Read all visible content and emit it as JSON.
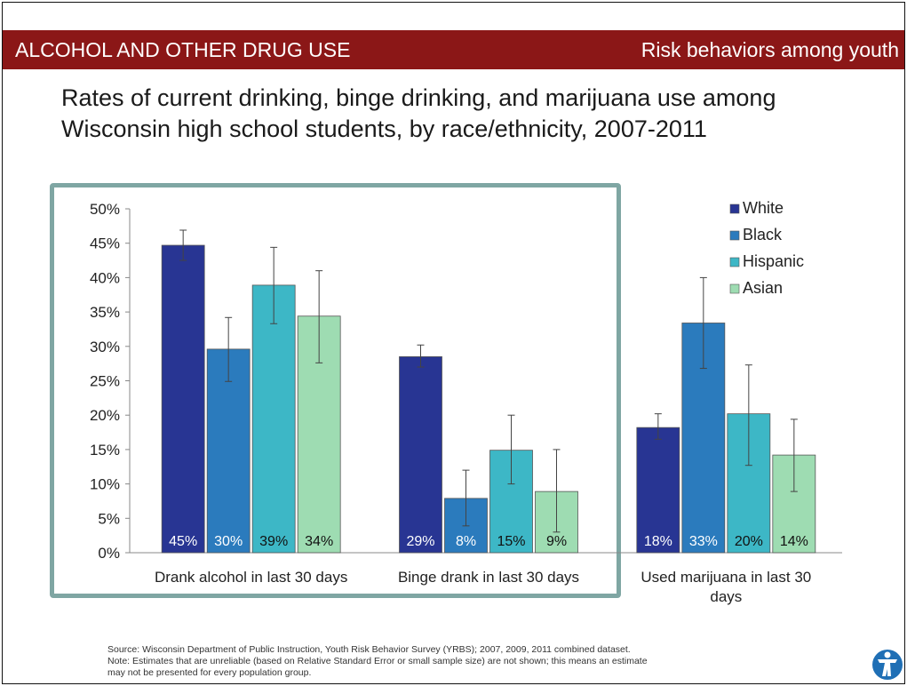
{
  "header": {
    "left_title": "ALCOHOL AND OTHER DRUG USE",
    "right_title": "Risk behaviors among youth"
  },
  "colors": {
    "header_bg": "#8b1717",
    "highlight_border": "#7fa6a3"
  },
  "chart_data": {
    "type": "bar",
    "title_lines": [
      "Rates of current drinking, binge drinking, and marijuana use among",
      "Wisconsin high school students, by race/ethnicity, 2007-2011"
    ],
    "categories": [
      [
        "Drank alcohol in last 30 days"
      ],
      [
        "Binge drank in last 30 days"
      ],
      [
        "Used marijuana in last 30",
        "days"
      ]
    ],
    "series": [
      {
        "name": "White",
        "color": "#283593",
        "values": [
          44.7,
          28.5,
          18.2
        ],
        "err_low": [
          42.5,
          27.0,
          16.5
        ],
        "err_high": [
          46.9,
          30.2,
          20.2
        ],
        "labels": [
          "45%",
          "29%",
          "18%"
        ],
        "label_color": "#ffffff"
      },
      {
        "name": "Black",
        "color": "#2b7bbd",
        "values": [
          29.6,
          7.9,
          33.4
        ],
        "err_low": [
          24.9,
          3.9,
          26.8
        ],
        "err_high": [
          34.2,
          12.0,
          40.0
        ],
        "labels": [
          "30%",
          "8%",
          "33%"
        ],
        "label_color": "#ffffff"
      },
      {
        "name": "Hispanic",
        "color": "#3db7c6",
        "values": [
          38.9,
          14.9,
          20.2
        ],
        "err_low": [
          33.3,
          10.0,
          12.7
        ],
        "err_high": [
          44.4,
          20.0,
          27.3
        ],
        "labels": [
          "39%",
          "15%",
          "20%"
        ],
        "label_color": "#111111"
      },
      {
        "name": "Asian",
        "color": "#9edcb2",
        "values": [
          34.4,
          8.9,
          14.2
        ],
        "err_low": [
          27.6,
          3.0,
          8.9
        ],
        "err_high": [
          41.0,
          15.0,
          19.4
        ],
        "labels": [
          "34%",
          "9%",
          "14%"
        ],
        "label_color": "#111111"
      }
    ],
    "yticks": [
      "0%",
      "5%",
      "10%",
      "15%",
      "20%",
      "25%",
      "30%",
      "35%",
      "40%",
      "45%",
      "50%"
    ],
    "ylim": [
      0,
      50
    ],
    "legend_position": "top-right",
    "grid": false
  },
  "source_note_lines": [
    "Source: Wisconsin Department of Public Instruction, Youth Risk Behavior Survey (YRBS); 2007, 2009, 2011 combined dataset.",
    "Note: Estimates that are unreliable (based on Relative Standard Error or small sample size) are not shown; this means an estimate",
    "may not be presented for every population group."
  ]
}
